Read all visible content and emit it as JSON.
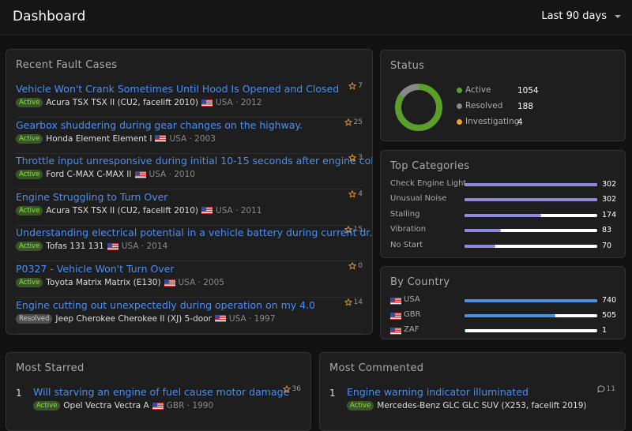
{
  "header": {
    "title": "Dashboard",
    "range": "Last 90 days"
  },
  "recent": {
    "title": "Recent Fault Cases",
    "items": [
      {
        "title": "Vehicle Won't Crank Sometimes Until Hood Is Opened and Closed",
        "status": "Active",
        "vehicle": "Acura TSX TSX II (CU2, facelift 2010)",
        "meta": "USA · 2012",
        "stars": 7
      },
      {
        "title": "Gearbox shuddering during gear changes on the highway.",
        "status": "Active",
        "vehicle": "Honda Element Element I",
        "meta": "USA · 2003",
        "stars": 25
      },
      {
        "title": "Throttle input unresponsive during initial 10-15 seconds after engine col...",
        "status": "Active",
        "vehicle": "Ford C-MAX C-MAX II",
        "meta": "USA · 2010",
        "stars": 3
      },
      {
        "title": "Engine Struggling to Turn Over",
        "status": "Active",
        "vehicle": "Acura TSX TSX II (CU2, facelift 2010)",
        "meta": "USA · 2011",
        "stars": 4
      },
      {
        "title": "Understanding electrical potential in a vehicle battery during current dr...",
        "status": "Active",
        "vehicle": "Tofas 131 131",
        "meta": "USA · 2014",
        "stars": 15
      },
      {
        "title": "P0327 - Vehicle Won't Turn Over",
        "status": "Active",
        "vehicle": "Toyota Matrix Matrix (E130)",
        "meta": "USA · 2005",
        "stars": 0
      },
      {
        "title": "Engine cutting out unexpectedly during operation on my 4.0",
        "status": "Resolved",
        "vehicle": "Jeep Cherokee Cherokee II (XJ) 5-door",
        "meta": "USA · 1997",
        "stars": 14
      }
    ]
  },
  "status": {
    "title": "Status",
    "items": [
      {
        "name": "Active",
        "value": 1054,
        "color": "#5b9e2a"
      },
      {
        "name": "Resolved",
        "value": 188,
        "color": "#8a8a8a"
      },
      {
        "name": "Investigating",
        "value": 4,
        "color": "#f0a030"
      }
    ]
  },
  "categories": {
    "title": "Top Categories",
    "color": "#8f88dc",
    "items": [
      {
        "name": "Check Engine Light",
        "value": 302
      },
      {
        "name": "Unusual Noise",
        "value": 302
      },
      {
        "name": "Stalling",
        "value": 174
      },
      {
        "name": "Vibration",
        "value": 83
      },
      {
        "name": "No Start",
        "value": 70
      }
    ]
  },
  "countries": {
    "title": "By Country",
    "color": "#4a90e2",
    "items": [
      {
        "name": "USA",
        "value": 740
      },
      {
        "name": "GBR",
        "value": 505
      },
      {
        "name": "ZAF",
        "value": 1
      }
    ]
  },
  "starred": {
    "title": "Most Starred",
    "items": [
      {
        "rank": 1,
        "title": "Will starving an engine of fuel cause motor damage",
        "status": "Active",
        "vehicle": "Opel Vectra Vectra A",
        "meta": "GBR · 1990",
        "stars": 36
      }
    ]
  },
  "commented": {
    "title": "Most Commented",
    "items": [
      {
        "rank": 1,
        "title": "Engine warning indicator illuminated",
        "status": "Active",
        "vehicle": "Mercedes-Benz GLC GLC SUV (X253, facelift 2019)",
        "comments": 11
      }
    ]
  }
}
